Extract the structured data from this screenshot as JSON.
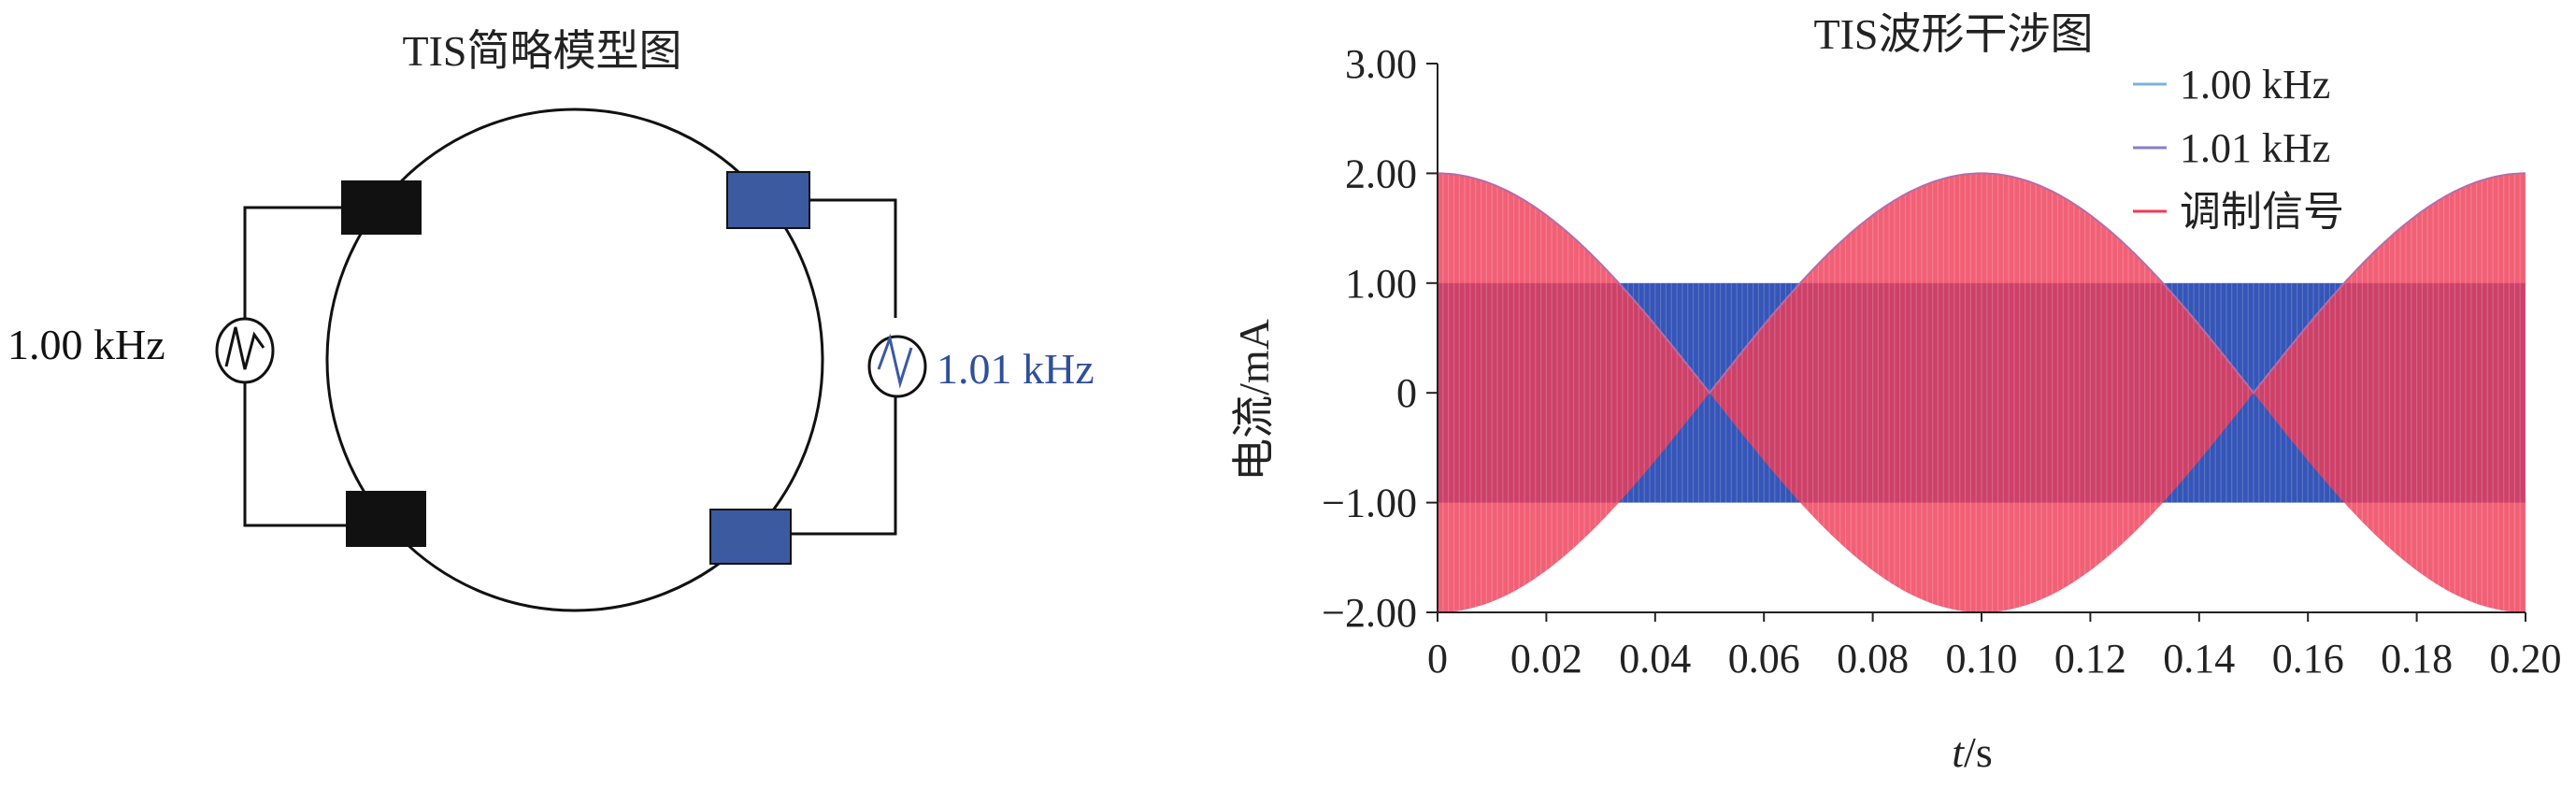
{
  "left_panel": {
    "title": "TIS简略模型图",
    "source_left_label": "1.00 kHz",
    "source_right_label": "1.01 kHz",
    "colors": {
      "left_electrode": "#111111",
      "right_electrode": "#3b5aa0",
      "right_label": "#2f4f9a"
    }
  },
  "chart_data": {
    "type": "line",
    "title": "TIS波形干涉图",
    "xlabel_italic": "t",
    "xlabel_unit": "/s",
    "ylabel": "电流/mA",
    "xlim": [
      0,
      0.2
    ],
    "ylim": [
      -2.0,
      3.0
    ],
    "x_ticks": [
      "0",
      "0.02",
      "0.04",
      "0.06",
      "0.08",
      "0.10",
      "0.12",
      "0.14",
      "0.16",
      "0.18",
      "0.20"
    ],
    "y_ticks": [
      "3.00",
      "2.00",
      "1.00",
      "0",
      "−1.00",
      "−2.00"
    ],
    "legend_position": "top-right",
    "series": [
      {
        "name": "1.00 kHz",
        "frequency_hz": 1000,
        "amplitude_ma": 1.0,
        "color": "#7ab3dc"
      },
      {
        "name": "1.01 kHz",
        "frequency_hz": 1010,
        "amplitude_ma": 1.0,
        "color": "#8a7fc0"
      },
      {
        "name": "调制信号",
        "envelope_peak_ma": 2.0,
        "beat_frequency_hz": 10,
        "color": "#f03a55"
      }
    ],
    "draw_colors": {
      "carrier_fill": "#3555b8",
      "modulated_fill": "#ef3d58",
      "envelope_line": "#b56ca8"
    }
  }
}
